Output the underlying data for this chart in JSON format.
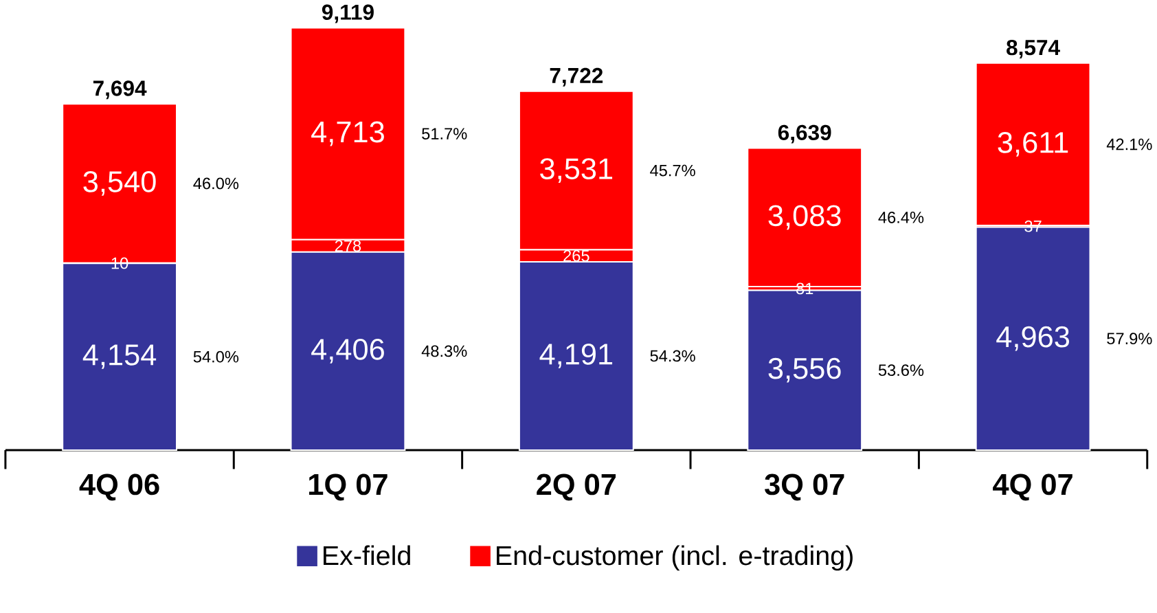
{
  "chart_data": {
    "type": "bar",
    "stacked": true,
    "legend": "bottom",
    "categories": [
      "4Q 06",
      "1Q 07",
      "2Q 07",
      "3Q 07",
      "4Q 07"
    ],
    "series": [
      {
        "name": "Ex-field",
        "color": "#35349a",
        "values": [
          4154,
          4406,
          4191,
          3556,
          4963
        ],
        "value_labels": [
          "4,154",
          "4,406",
          "4,191",
          "3,556",
          "4,963"
        ]
      },
      {
        "color": "#ff0000",
        "values": [
          10,
          278,
          265,
          81,
          37
        ],
        "value_labels": [
          "10",
          "278",
          "265",
          "81",
          "37"
        ]
      },
      {
        "name": "End-customer (incl. e-trading)",
        "color": "#ff0000",
        "values": [
          3540,
          4713,
          3531,
          3083,
          3611
        ],
        "value_labels": [
          "3,540",
          "4,713",
          "3,531",
          "3,083",
          "3,611"
        ]
      }
    ],
    "annotations": [
      "7,694",
      "9,119",
      "7,722",
      "6,639",
      "8,574",
      "54.0%",
      "48.3%",
      "54.3%",
      "53.6%",
      "57.9%",
      "46.0%",
      "51.7%",
      "45.7%",
      "46.4%",
      "42.1%"
    ]
  }
}
